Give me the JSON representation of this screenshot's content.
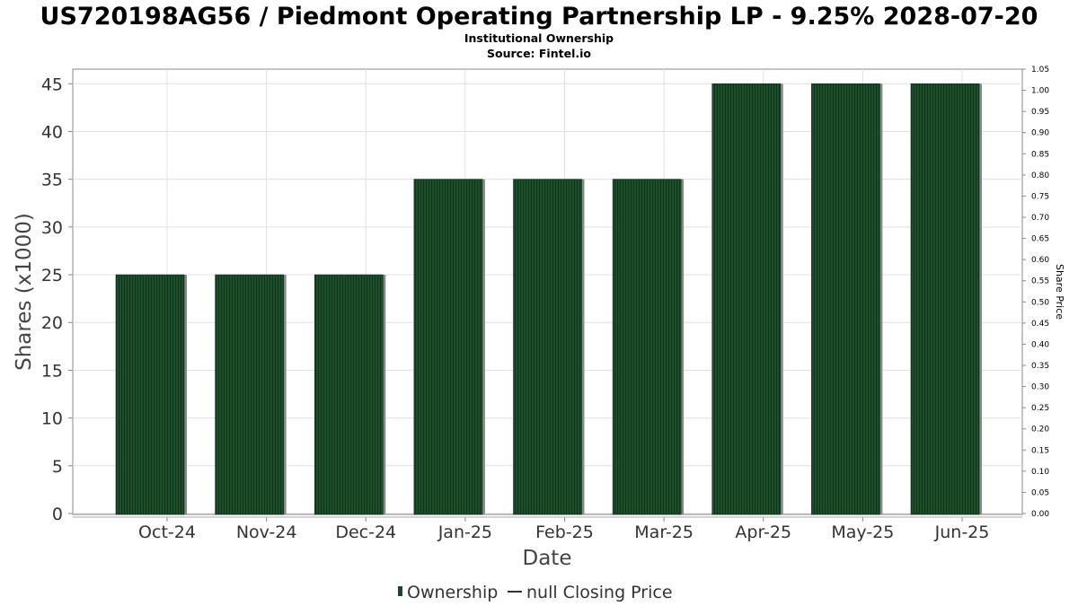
{
  "chart_data": {
    "type": "bar",
    "title": "US720198AG56 / Piedmont Operating Partnership LP - 9.25% 2028-07-20",
    "subtitle_lines": [
      "Institutional Ownership",
      "Source: Fintel.io"
    ],
    "xlabel": "Date",
    "ylabel": "Shares (x1000)",
    "y2label": "Share Price",
    "categories": [
      "Oct-24",
      "Nov-24",
      "Dec-24",
      "Jan-25",
      "Feb-25",
      "Mar-25",
      "Apr-25",
      "May-25",
      "Jun-25"
    ],
    "series": [
      {
        "name": "Ownership",
        "values": [
          25,
          25,
          25,
          35,
          35,
          35,
          45,
          45,
          45
        ]
      }
    ],
    "ylim": [
      0,
      47
    ],
    "yticks": [
      "0",
      "5",
      "10",
      "15",
      "20",
      "25",
      "30",
      "35",
      "40",
      "45"
    ],
    "y2lim": [
      0,
      1.05
    ],
    "y2ticks": [
      "0.00",
      "0.05",
      "0.10",
      "0.15",
      "0.20",
      "0.25",
      "0.30",
      "0.35",
      "0.40",
      "0.45",
      "0.50",
      "0.55",
      "0.60",
      "0.65",
      "0.70",
      "0.75",
      "0.80",
      "0.85",
      "0.90",
      "0.95",
      "1.00",
      "1.05"
    ],
    "grid": true,
    "legend": {
      "placement": "bottom-center",
      "items": [
        {
          "label": "Ownership",
          "marker": "bar"
        },
        {
          "label": "null Closing Price",
          "marker": "line"
        }
      ]
    },
    "colors": {
      "bar": "#1a4a2a",
      "bar_stripe": "#0f3a1d",
      "bar_shadow": "#888888",
      "grid": "#e0e0e0",
      "frame": "#888888"
    }
  }
}
